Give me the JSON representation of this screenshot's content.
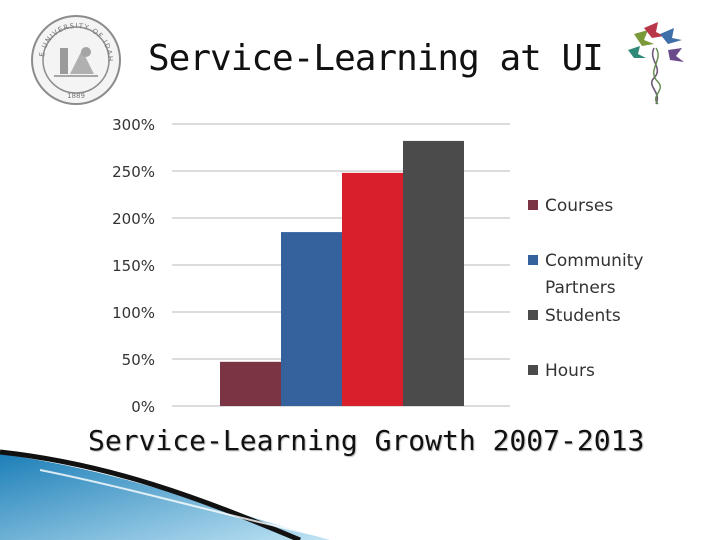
{
  "slide": {
    "title": "Service-Learning at UI",
    "seal_text": "THE UNIVERSITY OF IDAHO",
    "seal_year": "1889",
    "caption": "Service-Learning Growth 2007-2013"
  },
  "colors": {
    "courses": "#7a3444",
    "community_partners": "#35619c",
    "students": "#d91f2b",
    "hours": "#4b4b4b",
    "grid": "#c8c8c8",
    "swoosh": "#2f8ec4"
  },
  "chart_data": {
    "type": "bar",
    "title": "",
    "xlabel": "",
    "ylabel": "",
    "categories": [
      "Courses",
      "Community Partners",
      "Students",
      "Hours"
    ],
    "values": [
      47,
      185,
      248,
      282
    ],
    "ylim": [
      0,
      300
    ],
    "y_ticks": [
      "0%",
      "50%",
      "100%",
      "150%",
      "200%",
      "250%",
      "300%"
    ],
    "y_tick_values": [
      0,
      50,
      100,
      150,
      200,
      250,
      300
    ],
    "unit": "%",
    "grid": true,
    "legend": {
      "position": "right",
      "entries": [
        {
          "lines": [
            "Courses"
          ],
          "color": "#7a3444"
        },
        {
          "lines": [
            "Community",
            "Partners"
          ],
          "color": "#35619c"
        },
        {
          "lines": [
            "Students"
          ],
          "color": "#4b4b4b"
        },
        {
          "lines": [
            "Hours"
          ],
          "color": "#4b4b4b"
        }
      ]
    }
  }
}
